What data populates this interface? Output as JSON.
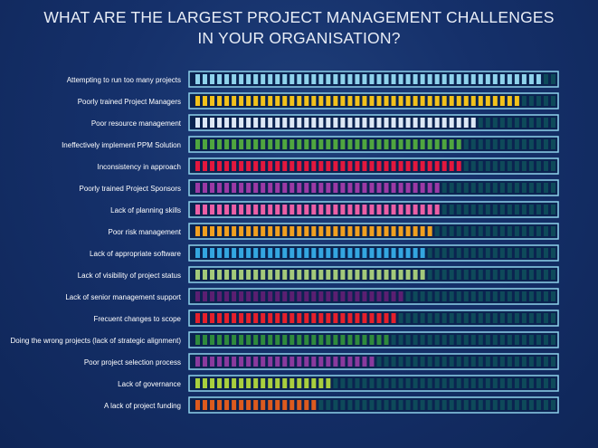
{
  "chart_data": {
    "type": "bar",
    "title": "WHAT ARE THE LARGEST PROJECT MANAGEMENT CHALLENGES\nIN YOUR ORGANISATION?",
    "total_segments": 50,
    "categories": [
      "Attempting to run too many projects",
      "Poorly trained Project Managers",
      "Poor resource management",
      "Ineffectively implement PPM Solution",
      "Inconsistency in approach",
      "Poorly trained Project Sponsors",
      "Lack of planning skills",
      "Poor risk management",
      "Lack of appropriate software",
      "Lack of visibility of project status",
      "Lack of senior management support",
      "Frecuent changes to scope",
      "Doing the wrong  projects (lack of strategic alignment)",
      "Poor project selection process",
      "Lack of governance",
      "A lack of project funding"
    ],
    "values": [
      48,
      45,
      39,
      37,
      37,
      34,
      34,
      33,
      32,
      32,
      29,
      28,
      27,
      25,
      19,
      17
    ],
    "colors": [
      "#8fd3ec",
      "#f2c21b",
      "#dde8f6",
      "#4fa63f",
      "#e3173e",
      "#9b3aa5",
      "#ec5fa6",
      "#f0a020",
      "#34a6e0",
      "#a3c97a",
      "#5b1f72",
      "#e5202b",
      "#2f8a3d",
      "#8a3a9e",
      "#a9cf3e",
      "#dd5a1e"
    ],
    "empty_color": "#0e4a5a",
    "frame_color": "#8fd3ec"
  }
}
